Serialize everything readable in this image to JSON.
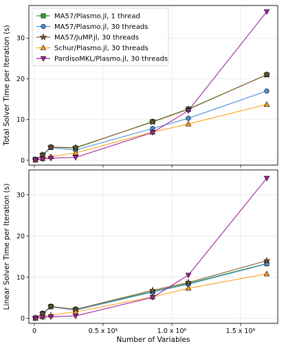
{
  "chart_data": [
    {
      "type": "line",
      "title": "",
      "xlabel": "",
      "ylabel": "Total Solver Time per Iteration (s)",
      "x": [
        8000,
        60000,
        120000,
        300000,
        860000,
        1120000,
        1690000
      ],
      "xlim": [
        -40000,
        1770000
      ],
      "ylim": [
        -1.2,
        38
      ],
      "xticks": [
        0,
        500000,
        1000000,
        1500000
      ],
      "xtick_labels": [
        "",
        "",
        "",
        ""
      ],
      "yticks": [
        0,
        10,
        20,
        30
      ],
      "ytick_labels": [
        "0",
        "10",
        "20",
        "30"
      ],
      "grid": true,
      "legend_position": "top-left",
      "series": [
        {
          "name": "MA57/Plasmo.jl, 1 thread",
          "color": "#2ca02c",
          "marker": "square",
          "values": [
            0.2,
            1.3,
            3.2,
            3.0,
            9.5,
            12.6,
            21.0
          ]
        },
        {
          "name": "MA57/Plasmo.jl, 30 threads",
          "color": "#4a90d9",
          "marker": "circle",
          "values": [
            0.1,
            1.2,
            3.1,
            2.5,
            7.8,
            10.3,
            17.0
          ]
        },
        {
          "name": "MA57/JuMP.jl, 30 threads",
          "color": "#8b5a2b",
          "marker": "star",
          "values": [
            0.1,
            1.3,
            3.2,
            3.1,
            9.4,
            12.5,
            21.0
          ]
        },
        {
          "name": "Schur/Plasmo.jl, 30 threads",
          "color": "#ff9f1a",
          "marker": "triangle-up",
          "values": [
            0.1,
            0.4,
            0.9,
            1.8,
            6.9,
            8.9,
            13.7
          ]
        },
        {
          "name": "PardisoMKL/Plasmo.jl, 30 threads",
          "color": "#a020a0",
          "marker": "triangle-down",
          "values": [
            0.1,
            0.3,
            0.5,
            0.7,
            6.8,
            12.2,
            36.5
          ]
        }
      ]
    },
    {
      "type": "line",
      "title": "",
      "xlabel": "Number of Variables",
      "ylabel": "Linear Solver Time per Iteration (s)",
      "x": [
        8000,
        60000,
        120000,
        300000,
        860000,
        1120000,
        1690000
      ],
      "xlim": [
        -40000,
        1770000
      ],
      "ylim": [
        -1.2,
        36
      ],
      "xticks": [
        0,
        500000,
        1000000,
        1500000
      ],
      "xtick_labels": [
        "0",
        "0.5 x 10⁶",
        "1.0 x 10⁶",
        "1.5 x 10⁶"
      ],
      "yticks": [
        0,
        10,
        20,
        30
      ],
      "ytick_labels": [
        "0",
        "10",
        "20",
        "30"
      ],
      "grid": true,
      "series": [
        {
          "name": "MA57/Plasmo.jl, 1 thread",
          "color": "#2ca02c",
          "marker": "square",
          "values": [
            0.1,
            1.2,
            2.9,
            2.2,
            6.5,
            8.5,
            13.3
          ]
        },
        {
          "name": "MA57/Plasmo.jl, 30 threads",
          "color": "#4a90d9",
          "marker": "circle",
          "values": [
            0.1,
            1.1,
            2.8,
            2.0,
            6.4,
            8.3,
            13.2
          ]
        },
        {
          "name": "MA57/JuMP.jl, 30 threads",
          "color": "#8b5a2b",
          "marker": "star",
          "values": [
            0.1,
            1.2,
            2.9,
            2.2,
            6.8,
            8.7,
            14.0
          ]
        },
        {
          "name": "Schur/Plasmo.jl, 30 threads",
          "color": "#ff9f1a",
          "marker": "triangle-up",
          "values": [
            0.1,
            0.4,
            0.8,
            1.6,
            5.2,
            7.3,
            10.8
          ]
        },
        {
          "name": "PardisoMKL/Plasmo.jl, 30 threads",
          "color": "#a020a0",
          "marker": "triangle-down",
          "values": [
            0.1,
            0.3,
            0.4,
            0.6,
            5.1,
            10.5,
            34.0
          ]
        }
      ]
    }
  ]
}
